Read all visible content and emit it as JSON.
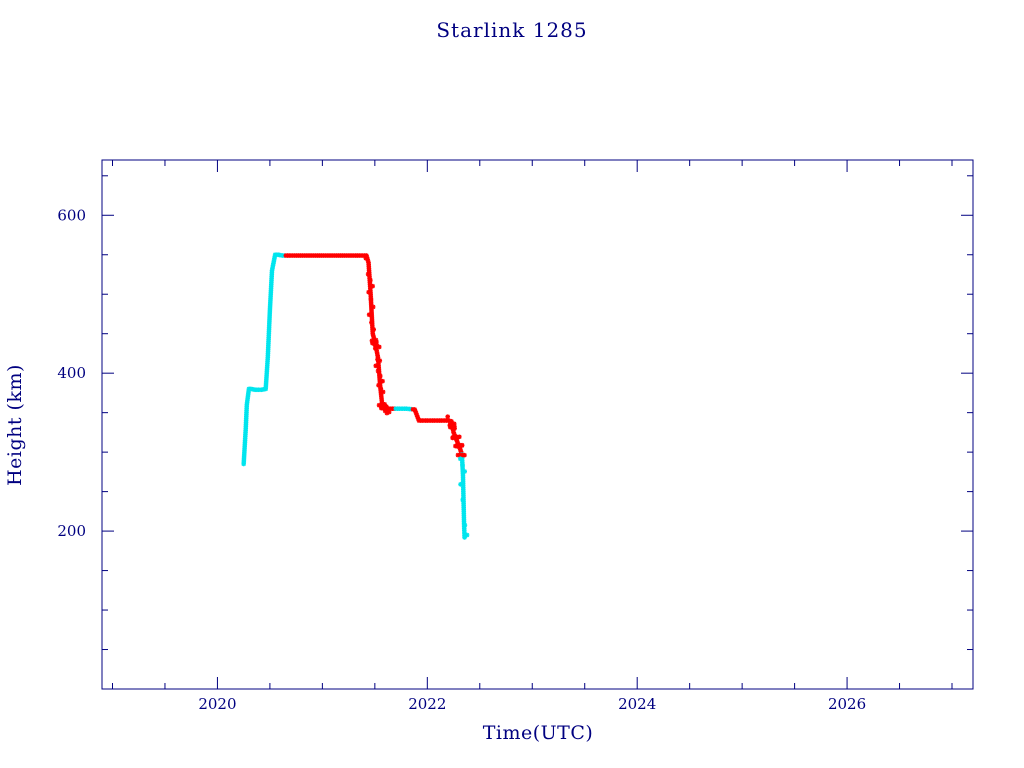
{
  "chart_data": {
    "type": "line",
    "title": "Starlink 1285",
    "xlabel": "Time(UTC)",
    "ylabel": "Height (km)",
    "xlim": [
      2018.9,
      2027.2
    ],
    "ylim": [
      0,
      670
    ],
    "x_ticks": [
      {
        "value": 2020,
        "label": "2020"
      },
      {
        "value": 2022,
        "label": "2022"
      },
      {
        "value": 2024,
        "label": "2024"
      },
      {
        "value": 2026,
        "label": "2026"
      }
    ],
    "y_ticks": [
      {
        "value": 200,
        "label": "200"
      },
      {
        "value": 400,
        "label": "400"
      },
      {
        "value": 600,
        "label": "600"
      }
    ],
    "x_minor_step": 0.5,
    "y_minor_step": 50,
    "grid": false,
    "colors": {
      "frame": "#000080",
      "text": "#000080",
      "orbit_raising": "#00e5ee",
      "operational": "#ff0000",
      "track": "#8b0000"
    },
    "series": [
      {
        "x": [
          2020.25,
          2020.27,
          2020.28,
          2020.3,
          2020.32,
          2020.36,
          2020.42,
          2020.46,
          2020.48,
          2020.5,
          2020.52,
          2020.55,
          2020.58,
          2020.62,
          2020.7,
          2020.9,
          2021.1,
          2021.3,
          2021.42,
          2021.44,
          2021.46,
          2021.48,
          2021.5,
          2021.53,
          2021.55,
          2021.57,
          2021.59,
          2021.62,
          2021.7,
          2021.8,
          2021.88,
          2021.92,
          2022.0,
          2022.05,
          2022.1,
          2022.15,
          2022.2,
          2022.23,
          2022.25,
          2022.28,
          2022.31,
          2022.33,
          2022.34,
          2022.345,
          2022.35,
          2022.355
        ],
        "y": [
          285,
          330,
          360,
          380,
          380,
          379,
          379,
          380,
          420,
          480,
          530,
          550,
          550,
          549,
          549,
          549,
          549,
          549,
          549,
          540,
          500,
          450,
          440,
          420,
          385,
          360,
          355,
          355,
          355,
          355,
          354,
          340,
          340,
          340,
          340,
          340,
          340,
          339,
          325,
          315,
          305,
          297,
          270,
          240,
          210,
          192
        ]
      }
    ]
  }
}
